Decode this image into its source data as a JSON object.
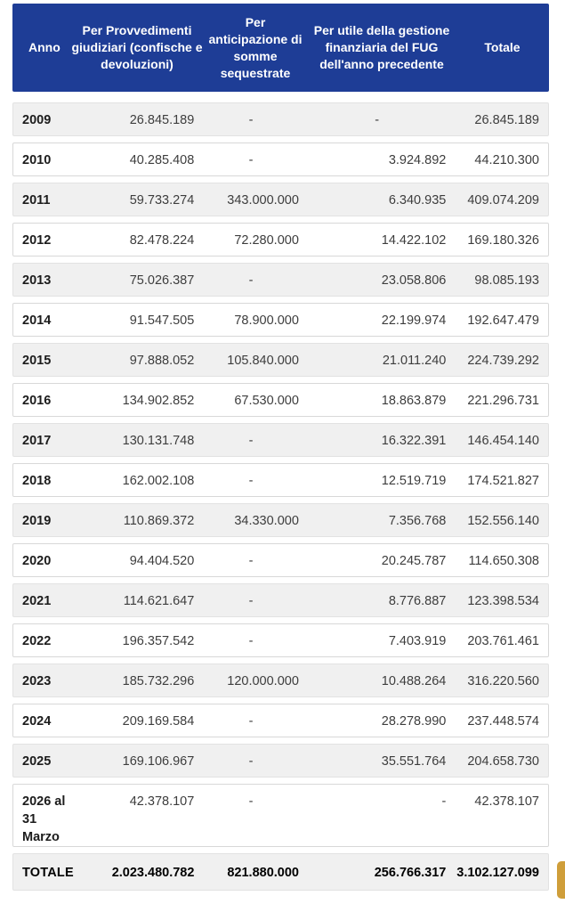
{
  "table": {
    "columns": [
      {
        "id": "anno",
        "label": "Anno"
      },
      {
        "id": "provvedimenti",
        "label": "Per Provvedimenti\ngiudiziari (confische e\ndevoluzioni)"
      },
      {
        "id": "anticipazione",
        "label": "Per\nanticipazione di\nsomme\nsequestrate"
      },
      {
        "id": "utile-gestione",
        "label": "Per utile della gestione\nfinanziaria del FUG\ndell'anno precedente"
      },
      {
        "id": "totale",
        "label": "Totale"
      }
    ],
    "rows": [
      [
        "2009",
        "26.845.189",
        "-",
        "-",
        "26.845.189"
      ],
      [
        "2010",
        "40.285.408",
        "-",
        "3.924.892",
        "44.210.300"
      ],
      [
        "2011",
        "59.733.274",
        "343.000.000",
        "6.340.935",
        "409.074.209"
      ],
      [
        "2012",
        "82.478.224",
        "72.280.000",
        "14.422.102",
        "169.180.326"
      ],
      [
        "2013",
        "75.026.387",
        "-",
        "23.058.806",
        "98.085.193"
      ],
      [
        "2014",
        "91.547.505",
        "78.900.000",
        "22.199.974",
        "192.647.479"
      ],
      [
        "2015",
        "97.888.052",
        "105.840.000",
        "21.011.240",
        "224.739.292"
      ],
      [
        "2016",
        "134.902.852",
        "67.530.000",
        "18.863.879",
        "221.296.731"
      ],
      [
        "2017",
        "130.131.748",
        "-",
        "16.322.391",
        "146.454.140"
      ],
      [
        "2018",
        "162.002.108",
        "-",
        "12.519.719",
        "174.521.827"
      ],
      [
        "2019",
        "110.869.372",
        "34.330.000",
        "7.356.768",
        "152.556.140"
      ],
      [
        "2020",
        "94.404.520",
        "-",
        "20.245.787",
        "114.650.308"
      ],
      [
        "2021",
        "114.621.647",
        "-",
        "8.776.887",
        "123.398.534"
      ],
      [
        "2022",
        "196.357.542",
        "-",
        "7.403.919",
        "203.761.461"
      ],
      [
        "2023",
        "185.732.296",
        "120.000.000",
        "10.488.264",
        "316.220.560"
      ],
      [
        "2024",
        "209.169.584",
        "-",
        "28.278.990",
        "237.448.574"
      ],
      [
        "2025",
        "169.106.967",
        "-",
        "35.551.764",
        "204.658.730"
      ],
      [
        "2026 al\n31\nMarzo",
        "42.378.107",
        "-",
        "-",
        "42.378.107"
      ]
    ],
    "dash_align_overrides": {
      "17": {
        "3": "right"
      }
    },
    "total_row": [
      "TOTALE",
      "2.023.480.782",
      "821.880.000",
      "256.766.317",
      "3.102.127.099"
    ]
  },
  "colors": {
    "header_bg": "#1e3d96",
    "header_text": "#ffffff",
    "row_alt_bg": "#f0f0f0",
    "row_bg": "#ffffff",
    "row_border": "#d8d8d8",
    "value_text": "#3d3d3d",
    "year_text": "#1c1c1c",
    "side_tab": "#cf9e3a"
  }
}
